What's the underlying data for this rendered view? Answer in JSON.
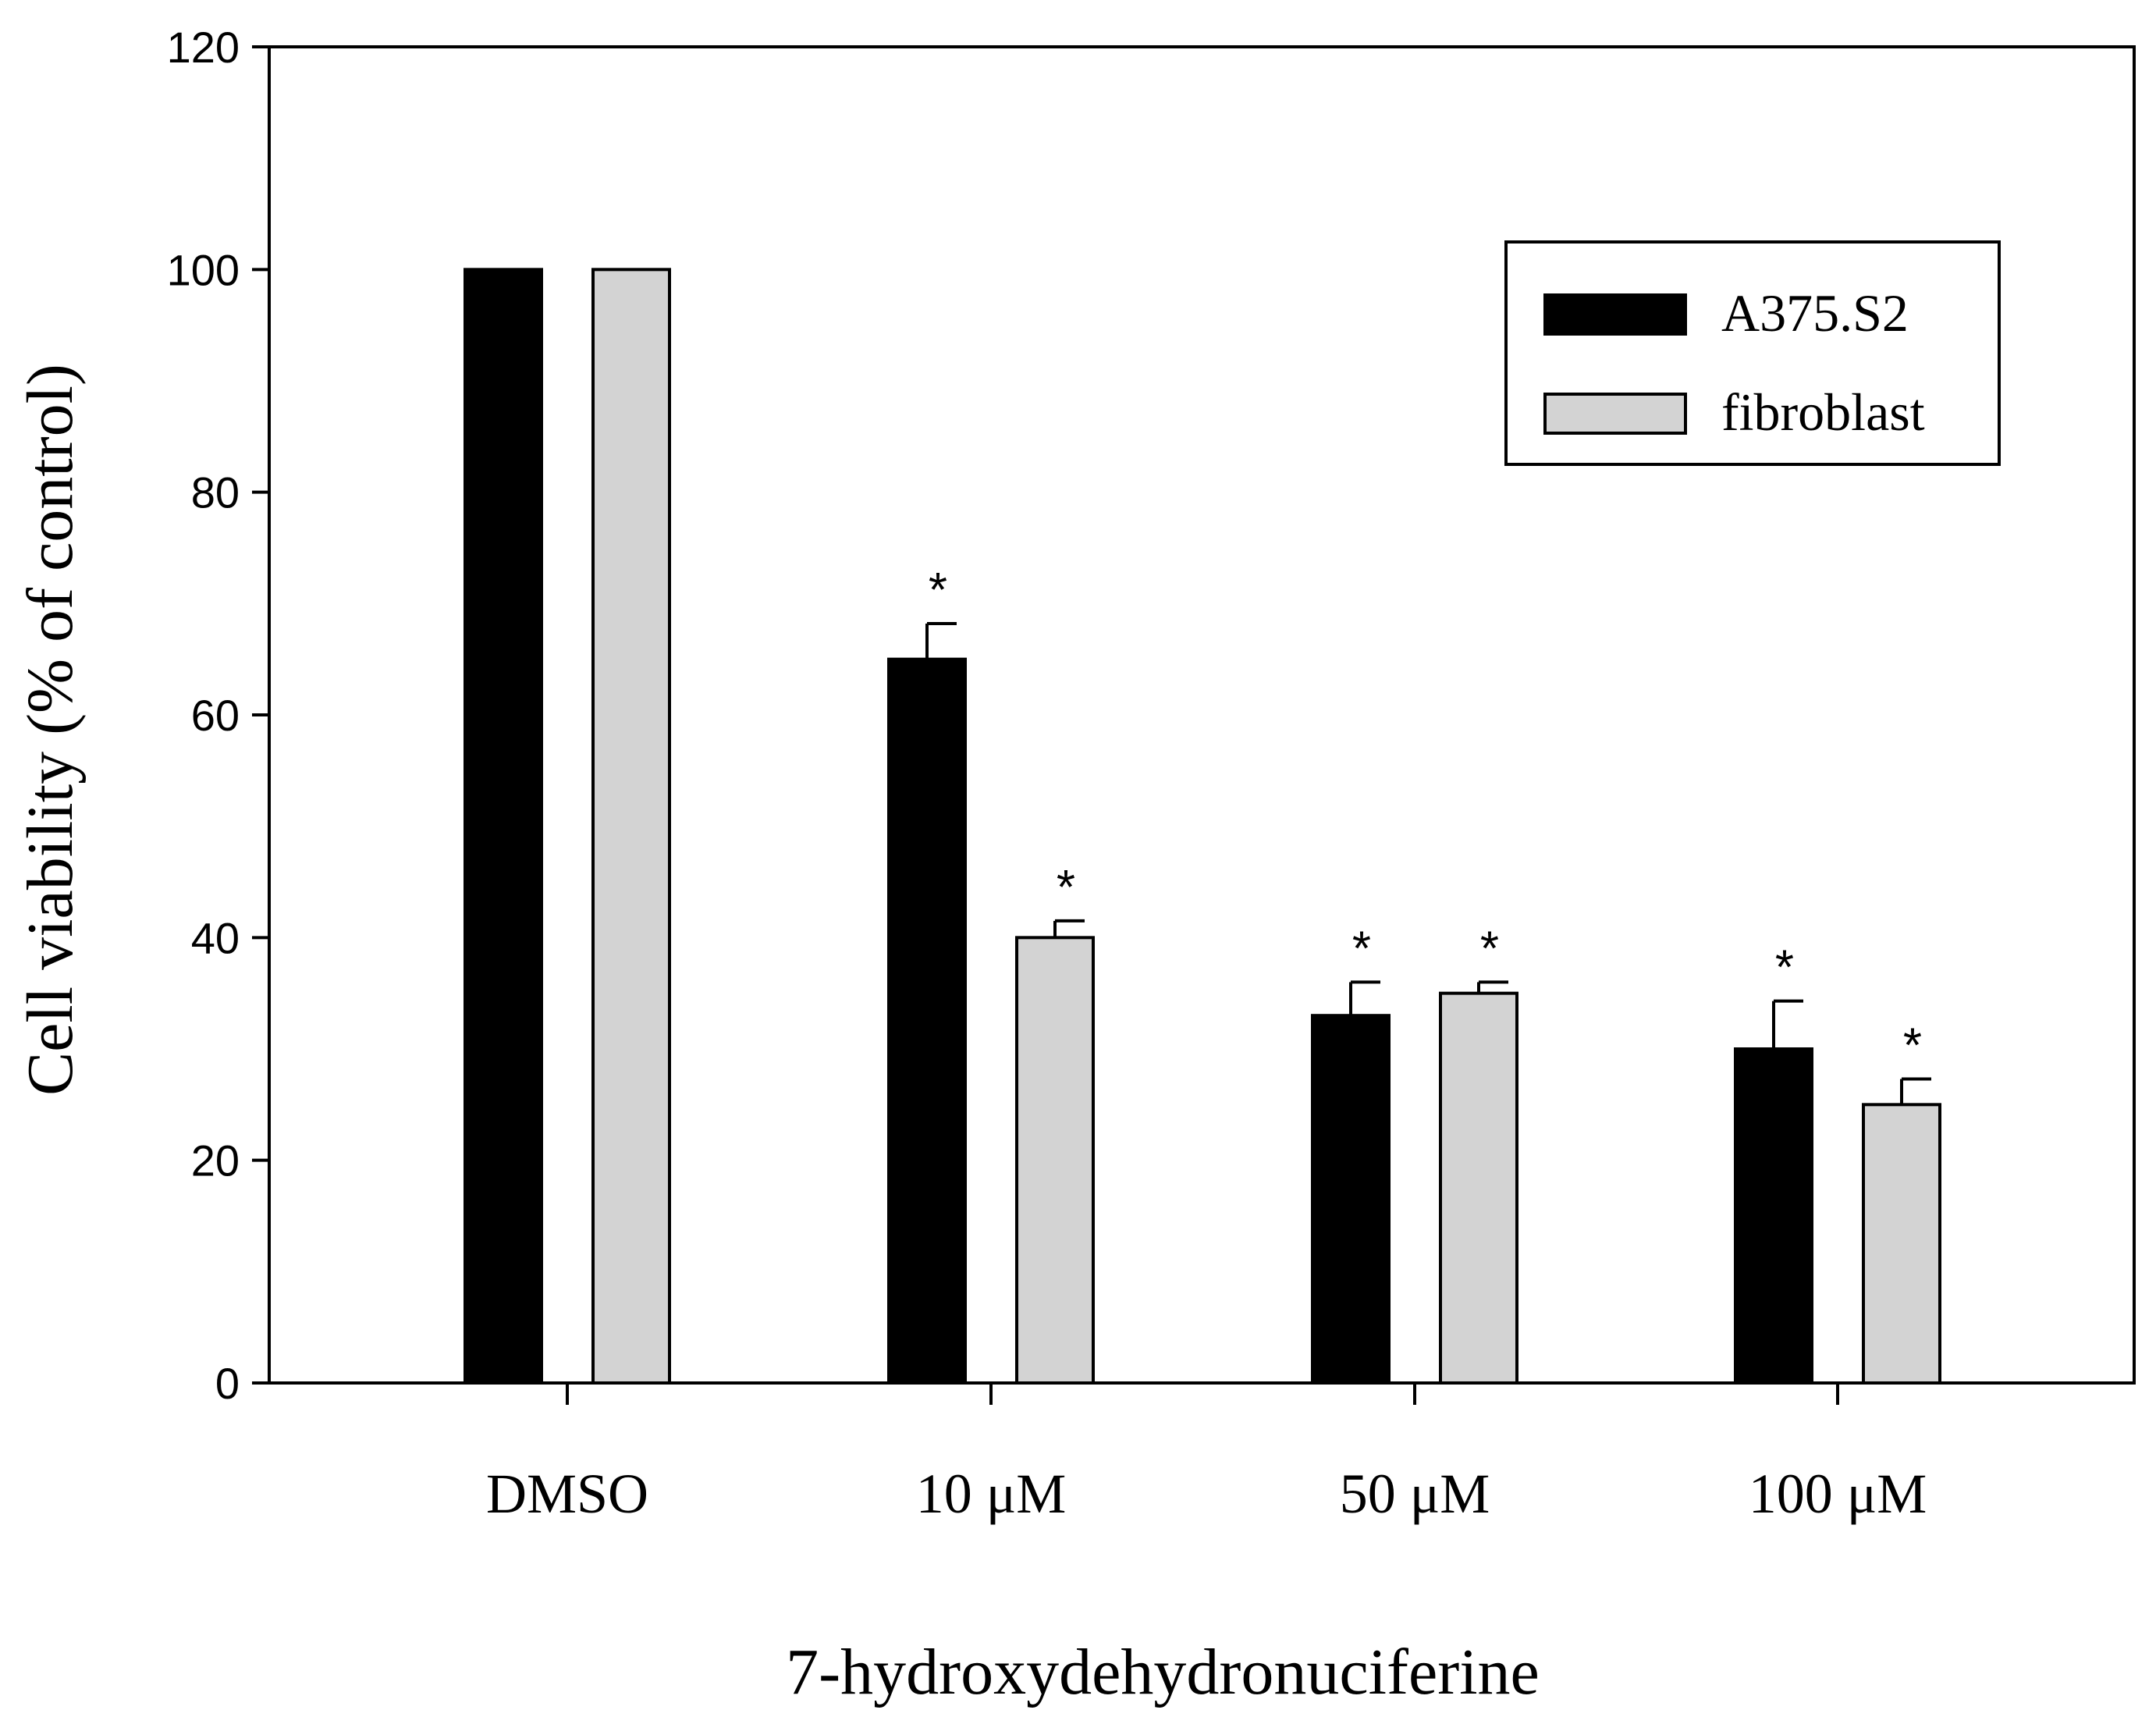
{
  "chart_data": {
    "type": "bar",
    "title": "",
    "xlabel": "7-hydroxydehydronuciferine",
    "ylabel": "Cell viability (% of control)",
    "ylim": [
      0,
      120
    ],
    "yticks": [
      0,
      20,
      40,
      60,
      80,
      100,
      120
    ],
    "categories": [
      "DMSO",
      "10 μM",
      "50 μM",
      "100 μM"
    ],
    "series": [
      {
        "name": "A375.S2",
        "color": "#000000",
        "values": [
          100,
          65,
          33,
          30
        ],
        "errors": [
          0,
          3.2,
          3,
          4.3
        ],
        "significance": [
          "",
          "*",
          "*",
          "*"
        ]
      },
      {
        "name": "fibroblast",
        "color": "#d3d3d3",
        "values": [
          100,
          40,
          35,
          25
        ],
        "errors": [
          0,
          1.5,
          1,
          2.3
        ],
        "significance": [
          "",
          "*",
          "*",
          "*"
        ]
      }
    ],
    "legend_position": "top-right",
    "grid": false
  }
}
